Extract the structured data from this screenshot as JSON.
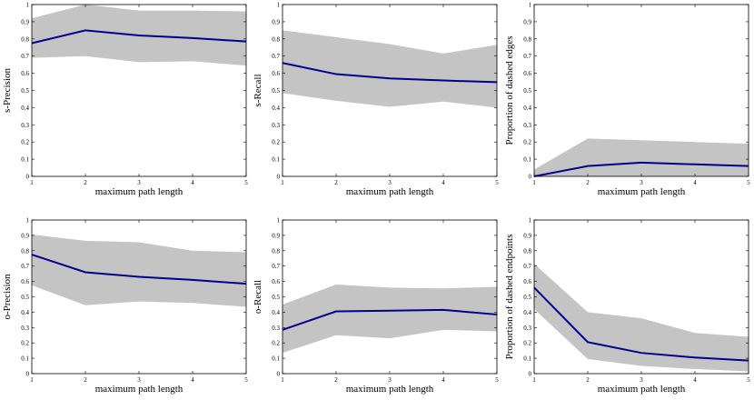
{
  "chart_data": [
    {
      "type": "line",
      "xlabel": "maximum path length",
      "ylabel": "s-Precision",
      "x": [
        1,
        2,
        3,
        4,
        5
      ],
      "values": [
        0.775,
        0.85,
        0.82,
        0.805,
        0.785
      ],
      "upper": [
        0.92,
        1.0,
        0.965,
        0.965,
        0.96
      ],
      "lower": [
        0.69,
        0.7,
        0.665,
        0.67,
        0.645
      ],
      "color": "#00008b",
      "band_color": "#c4c4c4",
      "xlim": [
        1,
        5
      ],
      "ylim": [
        0,
        1
      ],
      "xticks": [
        1,
        2,
        3,
        4,
        5
      ],
      "yticks": [
        0,
        0.1,
        0.2,
        0.3,
        0.4,
        0.5,
        0.6,
        0.7,
        0.8,
        0.9,
        1
      ]
    },
    {
      "type": "line",
      "xlabel": "maximum path length",
      "ylabel": "s-Recall",
      "x": [
        1,
        2,
        3,
        4,
        5
      ],
      "values": [
        0.66,
        0.595,
        0.57,
        0.558,
        0.548
      ],
      "upper": [
        0.85,
        0.81,
        0.77,
        0.715,
        0.765
      ],
      "lower": [
        0.485,
        0.44,
        0.405,
        0.435,
        0.4
      ],
      "color": "#00008b",
      "band_color": "#c4c4c4",
      "xlim": [
        1,
        5
      ],
      "ylim": [
        0,
        1
      ],
      "xticks": [
        1,
        2,
        3,
        4,
        5
      ],
      "yticks": [
        0,
        0.1,
        0.2,
        0.3,
        0.4,
        0.5,
        0.6,
        0.7,
        0.8,
        0.9,
        1
      ]
    },
    {
      "type": "line",
      "xlabel": "maximum path length",
      "ylabel": "Proportion of dashed edges",
      "x": [
        1,
        2,
        3,
        4,
        5
      ],
      "values": [
        0,
        0.06,
        0.08,
        0.07,
        0.06
      ],
      "upper": [
        0.04,
        0.22,
        0.21,
        0.2,
        0.19
      ],
      "lower": [
        0,
        0,
        0,
        0,
        0
      ],
      "color": "#00008b",
      "band_color": "#c4c4c4",
      "xlim": [
        1,
        5
      ],
      "ylim": [
        0,
        1
      ],
      "xticks": [
        1,
        2,
        3,
        4,
        5
      ],
      "yticks": [
        0,
        0.1,
        0.2,
        0.3,
        0.4,
        0.5,
        0.6,
        0.7,
        0.8,
        0.9,
        1
      ]
    },
    {
      "type": "line",
      "xlabel": "maximum path length",
      "ylabel": "o-Precision",
      "x": [
        1,
        2,
        3,
        4,
        5
      ],
      "values": [
        0.775,
        0.66,
        0.63,
        0.61,
        0.585
      ],
      "upper": [
        0.905,
        0.865,
        0.855,
        0.8,
        0.79
      ],
      "lower": [
        0.575,
        0.445,
        0.47,
        0.46,
        0.435
      ],
      "color": "#00008b",
      "band_color": "#c4c4c4",
      "xlim": [
        1,
        5
      ],
      "ylim": [
        0,
        1
      ],
      "xticks": [
        1,
        2,
        3,
        4,
        5
      ],
      "yticks": [
        0,
        0.1,
        0.2,
        0.3,
        0.4,
        0.5,
        0.6,
        0.7,
        0.8,
        0.9,
        1
      ]
    },
    {
      "type": "line",
      "xlabel": "maximum path length",
      "ylabel": "o-Recall",
      "x": [
        1,
        2,
        3,
        4,
        5
      ],
      "values": [
        0.285,
        0.405,
        0.41,
        0.415,
        0.385
      ],
      "upper": [
        0.45,
        0.58,
        0.56,
        0.555,
        0.565
      ],
      "lower": [
        0.135,
        0.25,
        0.23,
        0.285,
        0.275
      ],
      "color": "#00008b",
      "band_color": "#c4c4c4",
      "xlim": [
        1,
        5
      ],
      "ylim": [
        0,
        1
      ],
      "xticks": [
        1,
        2,
        3,
        4,
        5
      ],
      "yticks": [
        0,
        0.1,
        0.2,
        0.3,
        0.4,
        0.5,
        0.6,
        0.7,
        0.8,
        0.9,
        1
      ]
    },
    {
      "type": "line",
      "xlabel": "maximum path length",
      "ylabel": "Proportion of dashed endpoints",
      "x": [
        1,
        2,
        3,
        4,
        5
      ],
      "values": [
        0.56,
        0.205,
        0.135,
        0.105,
        0.085
      ],
      "upper": [
        0.715,
        0.4,
        0.36,
        0.265,
        0.24
      ],
      "lower": [
        0.42,
        0.095,
        0.05,
        0.03,
        0.015
      ],
      "color": "#00008b",
      "band_color": "#c4c4c4",
      "xlim": [
        1,
        5
      ],
      "ylim": [
        0,
        1
      ],
      "xticks": [
        1,
        2,
        3,
        4,
        5
      ],
      "yticks": [
        0,
        0.1,
        0.2,
        0.3,
        0.4,
        0.5,
        0.6,
        0.7,
        0.8,
        0.9,
        1
      ]
    }
  ]
}
